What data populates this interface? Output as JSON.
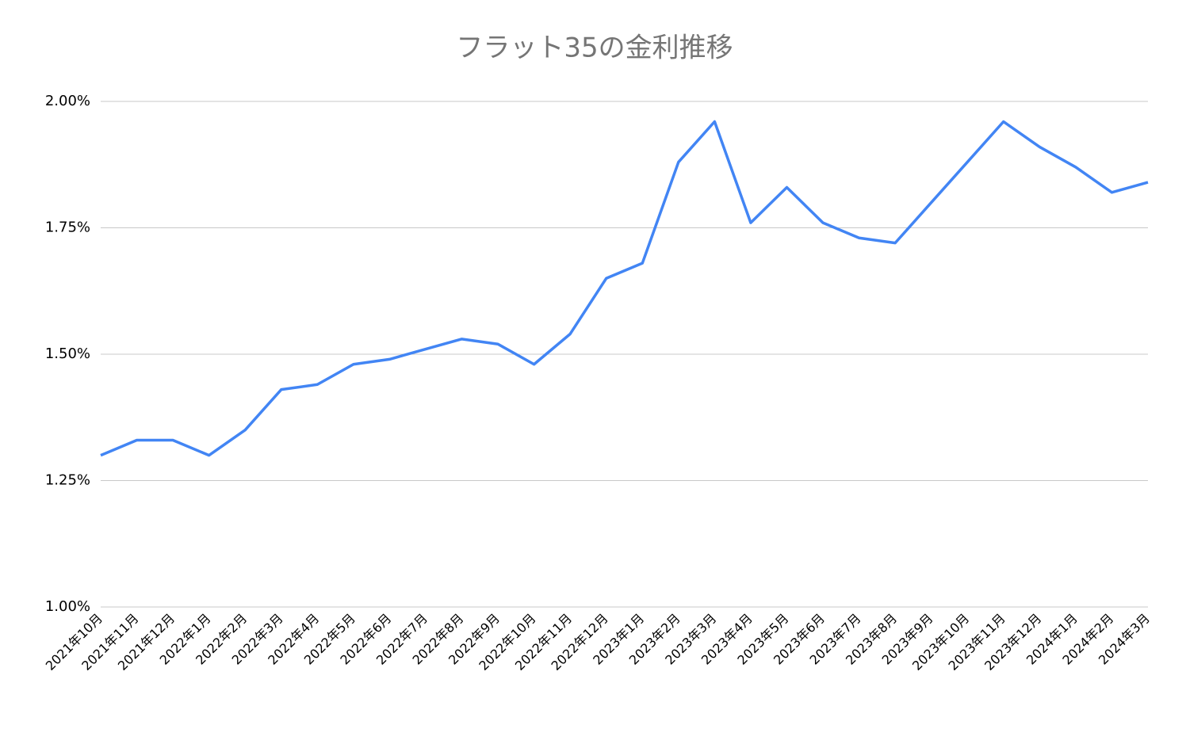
{
  "chart_data": {
    "type": "line",
    "title": "フラット35の金利推移",
    "categories": [
      "2021年10月",
      "2021年11月",
      "2021年12月",
      "2022年1月",
      "2022年2月",
      "2022年3月",
      "2022年4月",
      "2022年5月",
      "2022年6月",
      "2022年7月",
      "2022年8月",
      "2022年9月",
      "2022年10月",
      "2022年11月",
      "2022年12月",
      "2023年1月",
      "2023年2月",
      "2023年3月",
      "2023年4月",
      "2023年5月",
      "2023年6月",
      "2023年7月",
      "2023年8月",
      "2023年9月",
      "2023年10月",
      "2023年11月",
      "2023年12月",
      "2024年1月",
      "2024年2月",
      "2024年3月"
    ],
    "values": [
      1.3,
      1.33,
      1.33,
      1.3,
      1.35,
      1.43,
      1.44,
      1.48,
      1.49,
      1.51,
      1.53,
      1.52,
      1.48,
      1.54,
      1.65,
      1.68,
      1.88,
      1.96,
      1.76,
      1.83,
      1.76,
      1.73,
      1.72,
      1.8,
      1.88,
      1.96,
      1.91,
      1.87,
      1.82,
      1.84
    ],
    "color": "#4285f4",
    "ylim": [
      1,
      2
    ],
    "yticks": [
      {
        "value": 1,
        "label": "1.00%"
      },
      {
        "value": 1.25,
        "label": "1.25%"
      },
      {
        "value": 1.5,
        "label": "1.50%"
      },
      {
        "value": 1.75,
        "label": "1.75%"
      },
      {
        "value": 2,
        "label": "2.00%"
      }
    ],
    "grid": true
  }
}
